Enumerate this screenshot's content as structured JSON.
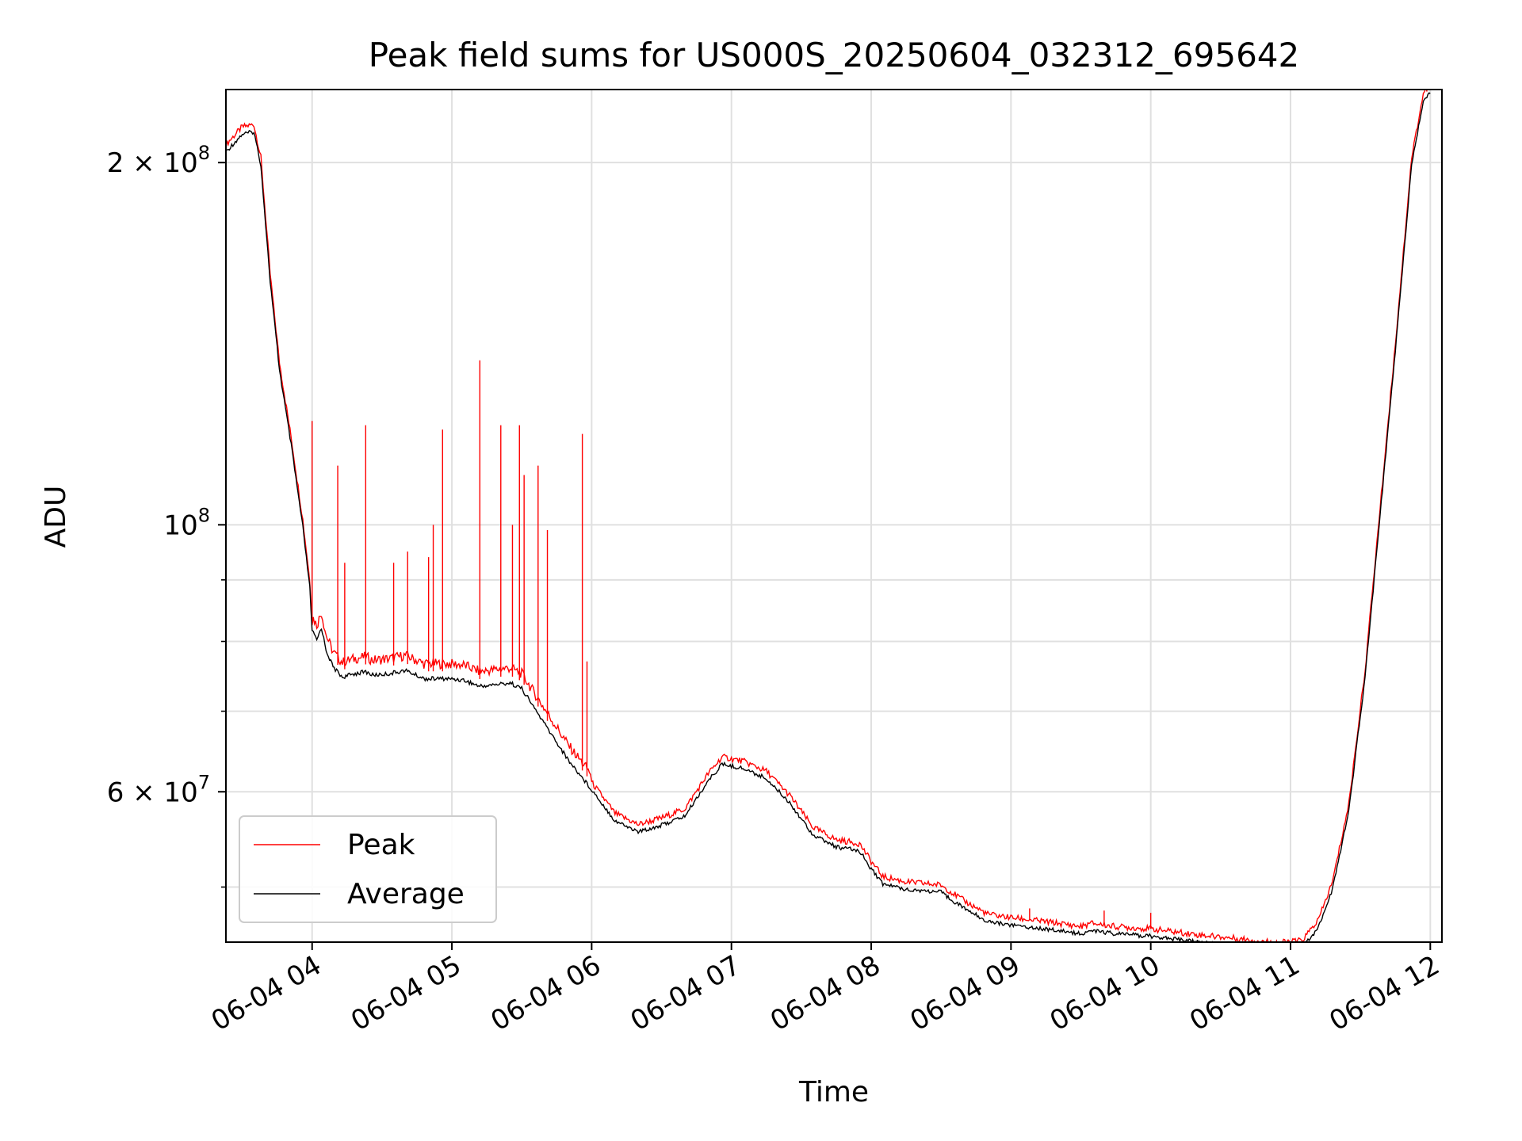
{
  "chart_data": {
    "type": "line",
    "title": "Peak field sums for US000S_20250604_032312_695642",
    "xlabel": "Time",
    "ylabel": "ADU",
    "x_tick_labels": [
      "06-04 04",
      "06-04 05",
      "06-04 06",
      "06-04 07",
      "06-04 08",
      "06-04 09",
      "06-04 10",
      "06-04 11",
      "06-04 12"
    ],
    "y_tick_labels": [
      {
        "value": 60000000,
        "base": "6 × 10",
        "exp": "7"
      },
      {
        "value": 100000000,
        "base": "10",
        "exp": "8"
      },
      {
        "value": 200000000,
        "base": "2 × 10",
        "exp": "8"
      }
    ],
    "y_scale": "log",
    "ylim": [
      45000000,
      230000000
    ],
    "xlim": [
      "2025-06-04 03:23",
      "2025-06-04 12:05"
    ],
    "grid": true,
    "legend_position": "lower-left",
    "colors": {
      "peak": "#ff0000",
      "average": "#000000",
      "grid": "#e0e0e0"
    },
    "series": [
      {
        "name": "Average",
        "color": "#000000",
        "points": [
          [
            "2025-06-04 03:23",
            205000000
          ],
          [
            "2025-06-04 03:30",
            212000000
          ],
          [
            "2025-06-04 03:35",
            213000000
          ],
          [
            "2025-06-04 03:38",
            200000000
          ],
          [
            "2025-06-04 03:42",
            160000000
          ],
          [
            "2025-06-04 03:46",
            135000000
          ],
          [
            "2025-06-04 03:51",
            117000000
          ],
          [
            "2025-06-04 03:56",
            100000000
          ],
          [
            "2025-06-04 03:59",
            89000000
          ],
          [
            "2025-06-04 04:00",
            82000000
          ],
          [
            "2025-06-04 04:02",
            80500000
          ],
          [
            "2025-06-04 04:04",
            82500000
          ],
          [
            "2025-06-04 04:06",
            79000000
          ],
          [
            "2025-06-04 04:09",
            76500000
          ],
          [
            "2025-06-04 04:13",
            75000000
          ],
          [
            "2025-06-04 04:18",
            75500000
          ],
          [
            "2025-06-04 04:23",
            75800000
          ],
          [
            "2025-06-04 04:26",
            75300000
          ],
          [
            "2025-06-04 04:33",
            75500000
          ],
          [
            "2025-06-04 04:40",
            76000000
          ],
          [
            "2025-06-04 04:48",
            74800000
          ],
          [
            "2025-06-04 04:58",
            74800000
          ],
          [
            "2025-06-04 05:05",
            74600000
          ],
          [
            "2025-06-04 05:12",
            73700000
          ],
          [
            "2025-06-04 05:25",
            74200000
          ],
          [
            "2025-06-04 05:30",
            73400000
          ],
          [
            "2025-06-04 05:40",
            68500000
          ],
          [
            "2025-06-04 05:50",
            64000000
          ],
          [
            "2025-06-04 06:00",
            60500000
          ],
          [
            "2025-06-04 06:10",
            57000000
          ],
          [
            "2025-06-04 06:20",
            55800000
          ],
          [
            "2025-06-04 06:30",
            56500000
          ],
          [
            "2025-06-04 06:40",
            57500000
          ],
          [
            "2025-06-04 06:50",
            61500000
          ],
          [
            "2025-06-04 06:56",
            63500000
          ],
          [
            "2025-06-04 07:05",
            63000000
          ],
          [
            "2025-06-04 07:15",
            61800000
          ],
          [
            "2025-06-04 07:25",
            59000000
          ],
          [
            "2025-06-04 07:35",
            55500000
          ],
          [
            "2025-06-04 07:45",
            54200000
          ],
          [
            "2025-06-04 07:55",
            53800000
          ],
          [
            "2025-06-04 08:00",
            52000000
          ],
          [
            "2025-06-04 08:05",
            50500000
          ],
          [
            "2025-06-04 08:15",
            50000000
          ],
          [
            "2025-06-04 08:30",
            49700000
          ],
          [
            "2025-06-04 08:40",
            48200000
          ],
          [
            "2025-06-04 08:50",
            47000000
          ],
          [
            "2025-06-04 09:00",
            46700000
          ],
          [
            "2025-06-04 09:20",
            46200000
          ],
          [
            "2025-06-04 09:30",
            45900000
          ],
          [
            "2025-06-04 09:35",
            46200000
          ],
          [
            "2025-06-04 09:45",
            45900000
          ],
          [
            "2025-06-04 10:00",
            45700000
          ],
          [
            "2025-06-04 10:20",
            45200000
          ],
          [
            "2025-06-04 10:40",
            44800000
          ],
          [
            "2025-06-04 10:55",
            44500000
          ],
          [
            "2025-06-04 11:05",
            44700000
          ],
          [
            "2025-06-04 11:12",
            46500000
          ],
          [
            "2025-06-04 11:18",
            50000000
          ],
          [
            "2025-06-04 11:25",
            58000000
          ],
          [
            "2025-06-04 11:32",
            75000000
          ],
          [
            "2025-06-04 11:38",
            100000000
          ],
          [
            "2025-06-04 11:45",
            140000000
          ],
          [
            "2025-06-04 11:52",
            200000000
          ],
          [
            "2025-06-04 11:57",
            226000000
          ],
          [
            "2025-06-04 12:00",
            230000000
          ]
        ]
      },
      {
        "name": "Peak",
        "color": "#ff0000",
        "spikes": [
          [
            "2025-06-04 04:00",
            122000000
          ],
          [
            "2025-06-04 04:11",
            112000000
          ],
          [
            "2025-06-04 04:14",
            93000000
          ],
          [
            "2025-06-04 04:23",
            121000000
          ],
          [
            "2025-06-04 04:35",
            93000000
          ],
          [
            "2025-06-04 04:41",
            95000000
          ],
          [
            "2025-06-04 04:50",
            94000000
          ],
          [
            "2025-06-04 04:52",
            100000000
          ],
          [
            "2025-06-04 04:56",
            120000000
          ],
          [
            "2025-06-04 05:12",
            137000000
          ],
          [
            "2025-06-04 05:21",
            121000000
          ],
          [
            "2025-06-04 05:26",
            100000000
          ],
          [
            "2025-06-04 05:29",
            121000000
          ],
          [
            "2025-06-04 05:31",
            110000000
          ],
          [
            "2025-06-04 05:37",
            112000000
          ],
          [
            "2025-06-04 05:41",
            99000000
          ],
          [
            "2025-06-04 05:56",
            119000000
          ],
          [
            "2025-06-04 05:58",
            77000000
          ],
          [
            "2025-06-04 09:08",
            48000000
          ],
          [
            "2025-06-04 09:40",
            47800000
          ],
          [
            "2025-06-04 10:00",
            47600000
          ]
        ]
      }
    ]
  }
}
